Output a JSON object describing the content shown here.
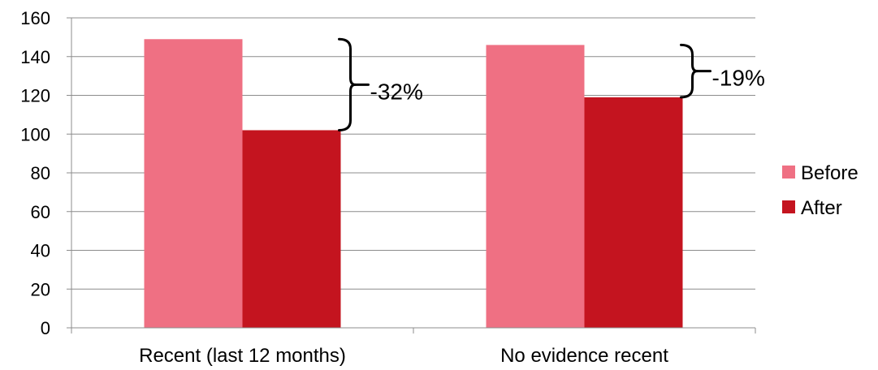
{
  "chart_data": {
    "type": "bar",
    "title": "",
    "xlabel": "",
    "ylabel": "",
    "categories": [
      "Recent (last 12 months)",
      "No evidence recent"
    ],
    "series": [
      {
        "name": "Before",
        "color": "#ef7083",
        "values": [
          149,
          146
        ]
      },
      {
        "name": "After",
        "color": "#c4141f",
        "values": [
          102,
          119
        ]
      }
    ],
    "ylim": [
      0,
      160
    ],
    "yticks": [
      0,
      20,
      40,
      60,
      80,
      100,
      120,
      140,
      160
    ],
    "grid": true,
    "legend_position": "right",
    "annotations": [
      {
        "category_index": 0,
        "label": "-32%"
      },
      {
        "category_index": 1,
        "label": "-19%"
      }
    ]
  }
}
